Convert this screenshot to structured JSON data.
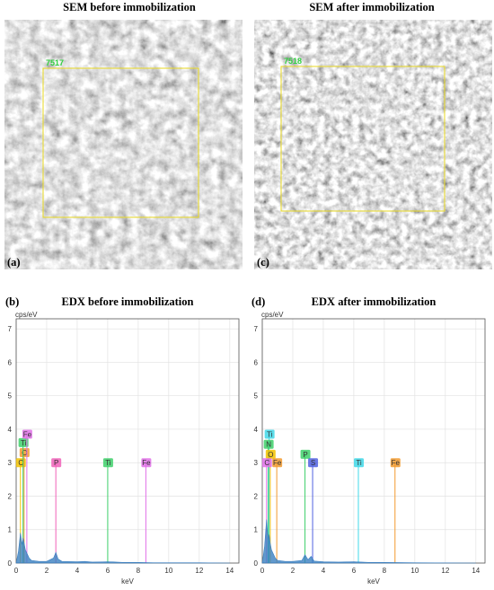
{
  "images": [
    {
      "panel_label": "(a)",
      "title": "SEM before immobilization",
      "roi_label": "7517"
    },
    {
      "panel_label": "(c)",
      "title": "SEM after immobilization",
      "roi_label": "7518"
    }
  ],
  "chart_data": [
    {
      "type": "edx",
      "panel_label": "(b)",
      "title": "EDX before immobilization",
      "y_label": "cps/eV",
      "x_label": "keV",
      "xlim": [
        0,
        14.6
      ],
      "ylim": [
        0,
        7.3
      ],
      "xticks": [
        0,
        2,
        4,
        6,
        8,
        10,
        12,
        14
      ],
      "yticks": [
        0,
        1,
        2,
        3,
        4,
        5,
        6,
        7
      ],
      "grid": true,
      "spectrum": {
        "color": "#3a7fc1",
        "x": [
          0,
          0.15,
          0.28,
          0.38,
          0.45,
          0.52,
          0.6,
          0.7,
          0.85,
          1.0,
          1.5,
          2.0,
          2.45,
          2.6,
          2.75,
          3.0,
          4.0,
          4.5,
          5.0,
          6.0,
          7.0,
          8.0,
          9.0,
          10.0,
          12.0,
          14.0
        ],
        "values": [
          0,
          0.35,
          0.9,
          0.55,
          0.75,
          0.6,
          0.4,
          0.3,
          0.15,
          0.08,
          0.05,
          0.05,
          0.15,
          0.32,
          0.12,
          0.05,
          0.04,
          0.05,
          0.03,
          0.04,
          0.02,
          0.02,
          0.01,
          0.01,
          0.01,
          0
        ]
      },
      "elements": [
        {
          "label": "C",
          "energy": 0.28,
          "height": 3.0,
          "color": "#f2c200"
        },
        {
          "label": "O",
          "energy": 0.52,
          "height": 3.3,
          "color": "#f29a2e"
        },
        {
          "label": "Ti",
          "energy": 0.45,
          "height": 3.6,
          "color": "#3ed06a"
        },
        {
          "label": "Fe",
          "energy": 0.7,
          "height": 3.85,
          "color": "#e070e8"
        },
        {
          "label": "P",
          "energy": 2.6,
          "height": 3.0,
          "color": "#f060b8"
        },
        {
          "label": "Ti",
          "energy": 6.0,
          "height": 3.0,
          "color": "#3ed06a"
        },
        {
          "label": "Fe",
          "energy": 8.5,
          "height": 3.0,
          "color": "#e070e8"
        }
      ]
    },
    {
      "type": "edx",
      "panel_label": "(d)",
      "title": "EDX after immobilization",
      "y_label": "cps/eV",
      "x_label": "keV",
      "xlim": [
        0,
        14.6
      ],
      "ylim": [
        0,
        7.3
      ],
      "xticks": [
        0,
        2,
        4,
        6,
        8,
        10,
        12,
        14
      ],
      "yticks": [
        0,
        1,
        2,
        3,
        4,
        5,
        6,
        7
      ],
      "grid": true,
      "spectrum": {
        "color": "#3a7fc1",
        "x": [
          0,
          0.15,
          0.28,
          0.35,
          0.4,
          0.45,
          0.52,
          0.6,
          0.7,
          0.85,
          1.0,
          1.5,
          2.0,
          2.6,
          2.8,
          3.0,
          3.2,
          3.4,
          4.0,
          5.0,
          6.0,
          7.0,
          8.0,
          10.0,
          14.0
        ],
        "values": [
          0,
          0.5,
          1.3,
          0.9,
          0.7,
          0.85,
          0.6,
          0.4,
          0.3,
          0.15,
          0.08,
          0.05,
          0.05,
          0.08,
          0.25,
          0.1,
          0.2,
          0.06,
          0.04,
          0.03,
          0.04,
          0.02,
          0.02,
          0.01,
          0
        ]
      },
      "elements": [
        {
          "label": "Ti",
          "energy": 0.45,
          "height": 3.85,
          "color": "#40d8e8"
        },
        {
          "label": "N",
          "energy": 0.39,
          "height": 3.55,
          "color": "#3ed06a"
        },
        {
          "label": "O",
          "energy": 0.52,
          "height": 3.25,
          "color": "#f2c200"
        },
        {
          "label": "C",
          "energy": 0.28,
          "height": 3.0,
          "color": "#e070e8"
        },
        {
          "label": "Fe",
          "energy": 0.95,
          "height": 3.0,
          "color": "#f29a2e"
        },
        {
          "label": "P",
          "energy": 2.8,
          "height": 3.25,
          "color": "#3ed06a"
        },
        {
          "label": "S",
          "energy": 3.3,
          "height": 3.0,
          "color": "#5060e0"
        },
        {
          "label": "Ti",
          "energy": 6.3,
          "height": 3.0,
          "color": "#40d8e8"
        },
        {
          "label": "Fe",
          "energy": 8.7,
          "height": 3.0,
          "color": "#f29a2e"
        }
      ]
    }
  ]
}
